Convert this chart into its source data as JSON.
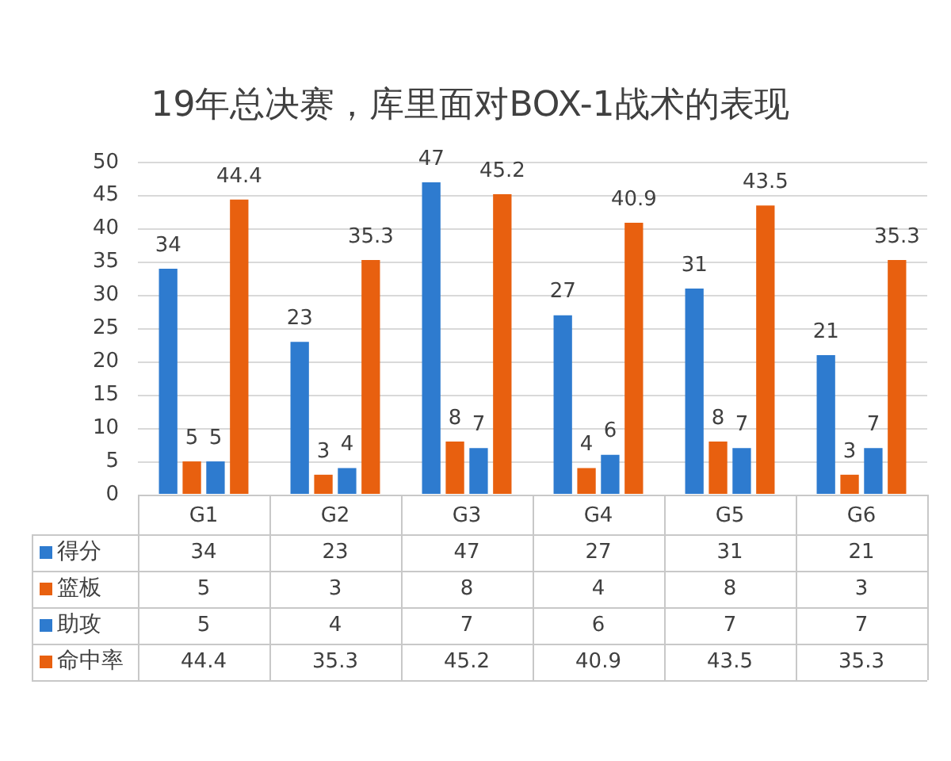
{
  "chart_data": {
    "type": "bar",
    "title": "19年总决赛，库里面对BOX-1战术的表现",
    "categories": [
      "G1",
      "G2",
      "G3",
      "G4",
      "G5",
      "G6"
    ],
    "series": [
      {
        "name": "得分",
        "color": "#2e7bcf",
        "values": [
          34,
          23,
          47,
          27,
          31,
          21
        ]
      },
      {
        "name": "篮板",
        "color": "#e8600f",
        "values": [
          5,
          3,
          8,
          4,
          8,
          3
        ]
      },
      {
        "name": "助攻",
        "color": "#2e7bcf",
        "values": [
          5,
          4,
          7,
          6,
          7,
          7
        ]
      },
      {
        "name": "命中率",
        "color": "#e8600f",
        "values": [
          44.4,
          35.3,
          45.2,
          40.9,
          43.5,
          35.3
        ]
      }
    ],
    "ylim": [
      0,
      50
    ],
    "yticks": [
      0,
      5,
      10,
      15,
      20,
      25,
      30,
      35,
      40,
      45,
      50
    ],
    "grid": "y",
    "legend": "bottom",
    "data_labels": true,
    "annotations": [
      "34",
      "23",
      "47",
      "27",
      "31",
      "21",
      "5",
      "3",
      "8",
      "4",
      "8",
      "3",
      "5",
      "4",
      "7",
      "6",
      "7",
      "7",
      "44.4",
      "35.3",
      "45.2",
      "40.9",
      "43.5",
      "35.3"
    ]
  }
}
